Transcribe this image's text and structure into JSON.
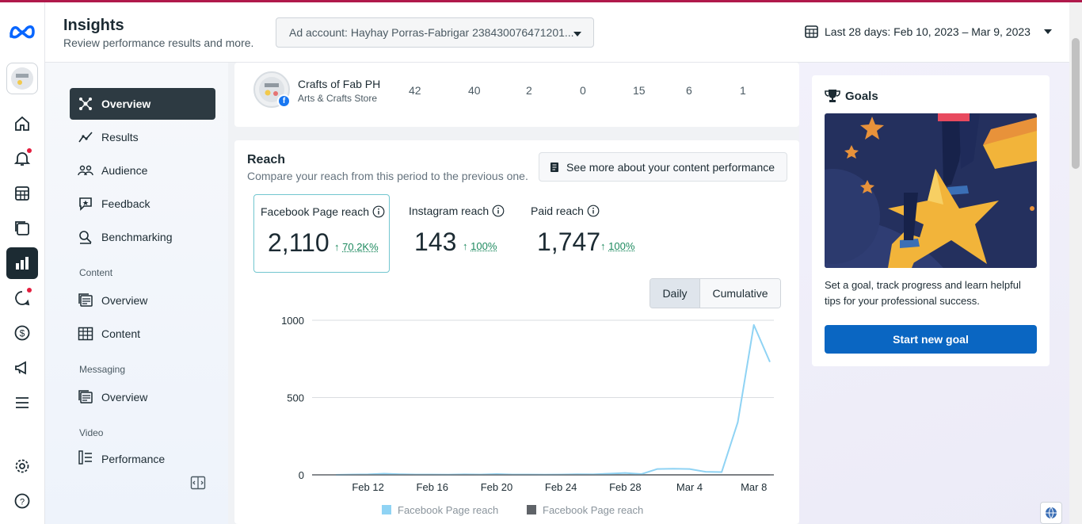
{
  "header": {
    "title": "Insights",
    "subtitle": "Review performance results and more.",
    "ad_account": "Ad account: Hayhay Porras-Fabrigar 238430076471201...",
    "date_range": "Last 28 days: Feb 10, 2023 – Mar 9, 2023"
  },
  "rail": {
    "icons": [
      "meta-logo-icon",
      "page-avatar",
      "home-icon",
      "notifications-icon",
      "planner-icon",
      "content-icon",
      "insights-icon",
      "inbox-icon",
      "monetization-icon",
      "ads-icon",
      "menu-icon",
      "settings-icon",
      "help-icon"
    ]
  },
  "sidebar": {
    "items": [
      {
        "label": "Overview",
        "icon": "overview-icon"
      },
      {
        "label": "Results",
        "icon": "results-icon"
      },
      {
        "label": "Audience",
        "icon": "audience-icon"
      },
      {
        "label": "Feedback",
        "icon": "feedback-icon"
      },
      {
        "label": "Benchmarking",
        "icon": "benchmarking-icon"
      }
    ],
    "content_section": "Content",
    "content_items": [
      {
        "label": "Overview",
        "icon": "content-overview-icon"
      },
      {
        "label": "Content",
        "icon": "table-icon"
      }
    ],
    "messaging_section": "Messaging",
    "messaging_items": [
      {
        "label": "Overview",
        "icon": "messaging-overview-icon"
      }
    ],
    "video_section": "Video",
    "video_items": [
      {
        "label": "Performance",
        "icon": "performance-icon"
      }
    ]
  },
  "page_row": {
    "name": "Crafts of Fab PH",
    "category": "Arts & Crafts Store",
    "values": [
      "42",
      "40",
      "2",
      "0",
      "15",
      "6",
      "1"
    ]
  },
  "reach": {
    "title": "Reach",
    "subtitle": "Compare your reach from this period to the previous one.",
    "see_more": "See more about your content performance",
    "metrics": [
      {
        "label": "Facebook Page reach",
        "value": "2,110",
        "change": "70.2K%"
      },
      {
        "label": "Instagram reach",
        "value": "143",
        "change": "100%"
      },
      {
        "label": "Paid reach",
        "value": "1,747",
        "change": "100%"
      }
    ],
    "toggle": {
      "daily": "Daily",
      "cumulative": "Cumulative"
    }
  },
  "chart_data": {
    "type": "line",
    "title": "",
    "xlabel": "",
    "ylabel": "",
    "ylim": [
      0,
      1000
    ],
    "yticks": [
      "0",
      "500",
      "1000"
    ],
    "xtick_labels": [
      "Feb 12",
      "Feb 16",
      "Feb 20",
      "Feb 24",
      "Feb 28",
      "Mar 4",
      "Mar 8"
    ],
    "x": [
      "Feb 10",
      "Feb 11",
      "Feb 12",
      "Feb 13",
      "Feb 14",
      "Feb 15",
      "Feb 16",
      "Feb 17",
      "Feb 18",
      "Feb 19",
      "Feb 20",
      "Feb 21",
      "Feb 22",
      "Feb 23",
      "Feb 24",
      "Feb 25",
      "Feb 26",
      "Feb 27",
      "Feb 28",
      "Mar 1",
      "Mar 2",
      "Mar 3",
      "Mar 4",
      "Mar 5",
      "Mar 6",
      "Mar 7",
      "Mar 8",
      "Mar 9"
    ],
    "series": [
      {
        "name": "Facebook Page reach",
        "color": "#8fd3f4",
        "values": [
          0,
          2,
          3,
          8,
          4,
          2,
          2,
          1,
          3,
          2,
          5,
          2,
          2,
          1,
          2,
          4,
          3,
          8,
          12,
          5,
          38,
          40,
          38,
          20,
          18,
          340,
          970,
          730
        ]
      },
      {
        "name": "Facebook Page reach",
        "color": "#5f6368",
        "values": [
          0,
          0,
          0,
          0,
          0,
          0,
          0,
          0,
          0,
          0,
          0,
          0,
          0,
          0,
          0,
          0,
          0,
          0,
          0,
          0,
          0,
          0,
          0,
          0,
          0,
          0,
          0,
          0
        ]
      }
    ],
    "legend_position": "bottom"
  },
  "goals": {
    "title": "Goals",
    "text": "Set a goal, track progress and learn helpful tips for your professional success.",
    "button": "Start new goal"
  },
  "colors": {
    "accent": "#0a66c2",
    "positive": "#1e8a5f",
    "active_nav": "#2d3a42",
    "brand_bar": "#b0194b"
  }
}
